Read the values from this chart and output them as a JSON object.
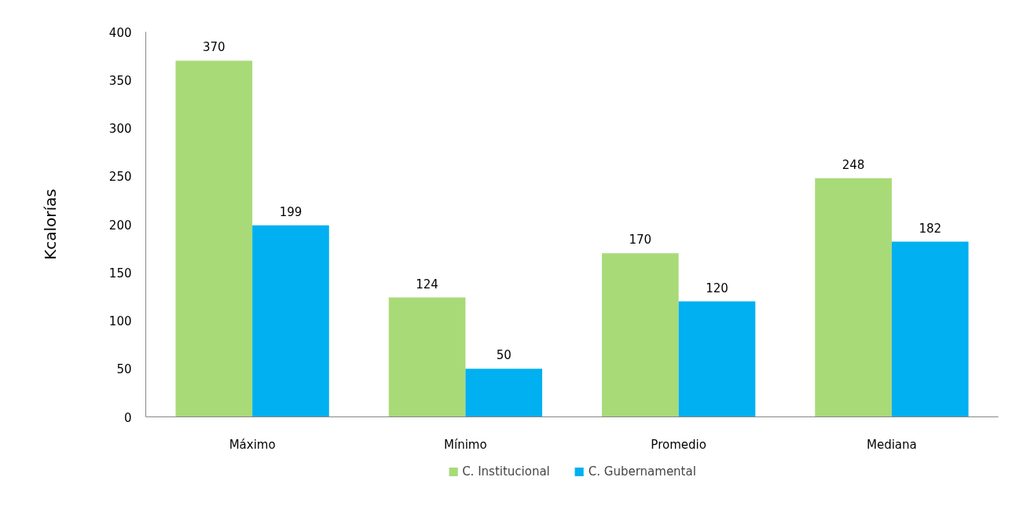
{
  "chart_data": {
    "type": "bar",
    "ylabel": "Kcalorías",
    "categories": [
      "Máximo",
      "Mínimo",
      "Promedio",
      "Mediana"
    ],
    "series": [
      {
        "name": "C. Institucional",
        "color": "#a9da78",
        "values": [
          370,
          124,
          170,
          248
        ]
      },
      {
        "name": "C. Gubernamental",
        "color": "#00b0f0",
        "values": [
          199,
          50,
          120,
          182
        ]
      }
    ],
    "ylim": [
      0,
      400
    ],
    "yticks": [
      0,
      50,
      100,
      150,
      200,
      250,
      300,
      350,
      400
    ],
    "data_labels": true,
    "grid": false,
    "legend": "bottom"
  }
}
